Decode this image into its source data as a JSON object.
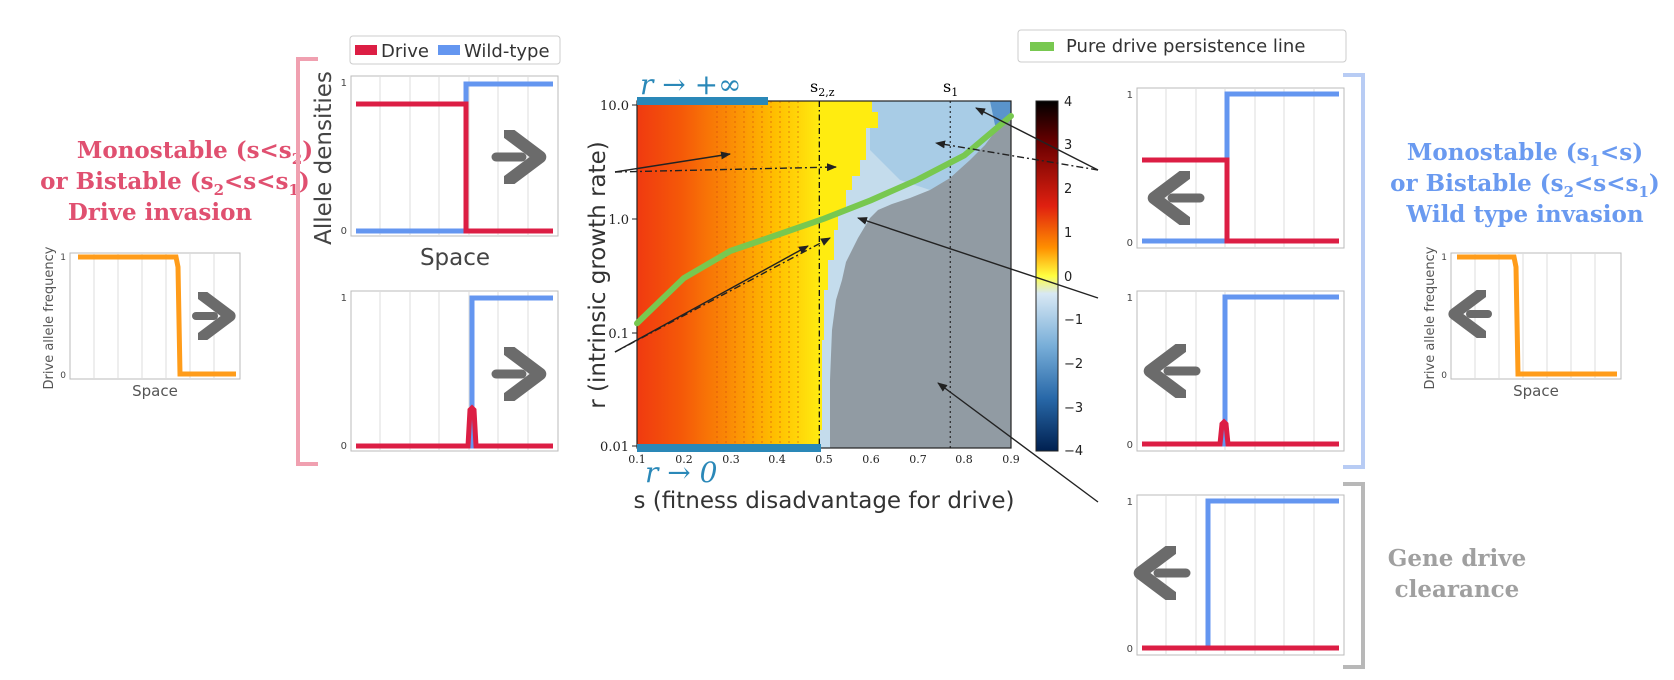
{
  "left_panel": {
    "title_line1": "Monostable (s<s",
    "title_line1_sub": "2",
    "title_line1_end": ")",
    "title_line2_a": "or Bistable (s",
    "title_line2_sub1": "2",
    "title_line2_b": "<s<s",
    "title_line2_sub2": "1",
    "title_line2_end": ")",
    "title_line3": "Drive invasion",
    "ylabel": "Drive allele frequency",
    "xlabel": "Space",
    "tick_top": "1",
    "tick_bottom": "0",
    "color": "#e05070"
  },
  "legend_top": {
    "drive": "Drive",
    "wildtype": "Wild-type"
  },
  "density_plots": {
    "ylabel": "Allele densities",
    "xlabel": "Space",
    "tick_top": "1",
    "tick_bottom": "0"
  },
  "heatmap": {
    "ylabel": "r (intrinsic growth rate)",
    "xlabel": "s (fitness disadvantage for drive)",
    "yticks": [
      "10.0",
      "1.0",
      "0.1",
      "0.01"
    ],
    "xticks": [
      "0.1",
      "0.2",
      "0.3",
      "0.4",
      "0.5",
      "0.6",
      "0.7",
      "0.8",
      "0.9"
    ],
    "annot_top": "r → +∞",
    "annot_bottom": "r → 0",
    "s2z_label": "s",
    "s2z_sub": "2,z",
    "s1_label": "s",
    "s1_sub": "1",
    "colorbar_ticks": [
      "4",
      "3",
      "2",
      "1",
      "0",
      "−1",
      "−2",
      "−3",
      "−4"
    ],
    "legend_label": "Pure drive persistence line",
    "line_color": "#78c850"
  },
  "right_panel": {
    "title_line1_a": "Monostable (s",
    "title_line1_sub": "1",
    "title_line1_b": "<s)",
    "title_line2_a": "or Bistable (s",
    "title_line2_sub1": "2",
    "title_line2_b": "<s<s",
    "title_line2_sub2": "1",
    "title_line2_end": ")",
    "title_line3": "Wild type invasion",
    "ylabel": "Drive allele frequency",
    "xlabel": "Space",
    "tick_top": "1",
    "tick_bottom": "0",
    "color": "#6a9af0"
  },
  "clearance": {
    "line1": "Gene drive",
    "line2": "clearance",
    "color": "#a0a0a0"
  },
  "colors": {
    "drive": "#dc1e44",
    "wildtype": "#6496f0",
    "frequency": "#ff9c1a",
    "arrow_gray": "#6b6b6b"
  },
  "chart_data": {
    "type": "heatmap",
    "title": "",
    "xlabel": "s (fitness disadvantage for drive)",
    "ylabel": "r (intrinsic growth rate)",
    "xlim": [
      0.1,
      0.9
    ],
    "ylim": [
      0.01,
      10.0
    ],
    "yscale": "log",
    "colorbar_range": [
      -4,
      4
    ],
    "vertical_lines": [
      {
        "name": "s2,z",
        "x": 0.49
      },
      {
        "name": "s1",
        "x": 0.77
      }
    ],
    "series": [
      {
        "name": "Pure drive persistence line",
        "x": [
          0.1,
          0.2,
          0.3,
          0.4,
          0.5,
          0.6,
          0.7,
          0.8,
          0.9
        ],
        "y": [
          0.12,
          0.3,
          0.52,
          0.72,
          1.0,
          1.45,
          2.2,
          3.6,
          8.0
        ]
      }
    ]
  }
}
